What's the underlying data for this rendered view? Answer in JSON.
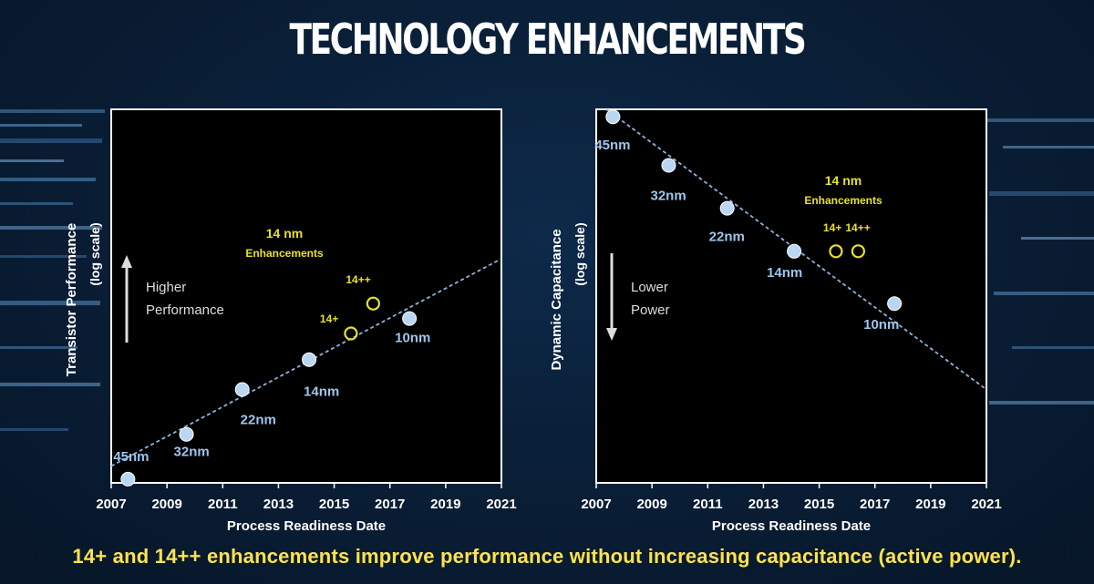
{
  "title": "TECHNOLOGY ENHANCEMENTS",
  "footer": "14+ and 14++ enhancements improve performance without increasing capacitance (active power).",
  "colors": {
    "point": "#b9d6f3",
    "label": "#9ec5ec",
    "highlight": "#e8e12a",
    "trend": "#8fb3d9",
    "axis": "#ffffff"
  },
  "chart_data": [
    {
      "type": "scatter",
      "xlabel": "Process Readiness Date",
      "ylabel": "Transistor Performance",
      "ylabel_sub": "(log scale)",
      "xlim": [
        2007,
        2021
      ],
      "xticks": [
        "2007",
        "2009",
        "2011",
        "2013",
        "2015",
        "2017",
        "2019",
        "2021"
      ],
      "y_scale": "log",
      "grid": false,
      "series": [
        {
          "points": [
            {
              "x": 2007.6,
              "y": 0.1,
              "label": "45nm"
            },
            {
              "x": 2009.7,
              "y": 1.3,
              "label": "32nm"
            },
            {
              "x": 2011.7,
              "y": 2.5,
              "label": "22nm"
            },
            {
              "x": 2014.1,
              "y": 3.3,
              "label": "14nm"
            },
            {
              "x": 2017.7,
              "y": 4.4,
              "label": "10nm"
            }
          ]
        },
        {
          "points": [
            {
              "x": 2015.6,
              "y": 4.0,
              "label": "14+"
            },
            {
              "x": 2016.4,
              "y": 4.8,
              "label": "14++"
            }
          ]
        }
      ],
      "trendline": {
        "x": [
          2007.0,
          2021.0
        ],
        "y": [
          0.45,
          6.0
        ]
      },
      "annotation": {
        "line1": "14 nm",
        "line2": "Enhancements"
      },
      "direction": {
        "line1": "Higher",
        "line2": "Performance",
        "arrow": "up"
      }
    },
    {
      "type": "scatter",
      "xlabel": "Process Readiness Date",
      "ylabel": "Dynamic Capacitance",
      "ylabel_sub": "(log scale)",
      "xlim": [
        2007,
        2021
      ],
      "xticks": [
        "2007",
        "2009",
        "2011",
        "2013",
        "2015",
        "2017",
        "2019",
        "2021"
      ],
      "y_scale": "log",
      "grid": false,
      "series": [
        {
          "points": [
            {
              "x": 2007.6,
              "y": 9.8,
              "label": "45nm"
            },
            {
              "x": 2009.6,
              "y": 8.5,
              "label": "32nm"
            },
            {
              "x": 2011.7,
              "y": 7.35,
              "label": "22nm"
            },
            {
              "x": 2014.1,
              "y": 6.2,
              "label": "14nm"
            },
            {
              "x": 2017.7,
              "y": 4.8,
              "label": "10nm"
            }
          ]
        },
        {
          "points": [
            {
              "x": 2015.6,
              "y": 6.2,
              "label": "14+"
            },
            {
              "x": 2016.4,
              "y": 6.2,
              "label": "14++"
            }
          ]
        }
      ],
      "trendline": {
        "x": [
          2007.0,
          2021.0
        ],
        "y": [
          10.2,
          2.5
        ]
      },
      "annotation": {
        "line1": "14 nm",
        "line2": "Enhancements"
      },
      "direction": {
        "line1": "Lower",
        "line2": "Power",
        "arrow": "down"
      }
    }
  ]
}
